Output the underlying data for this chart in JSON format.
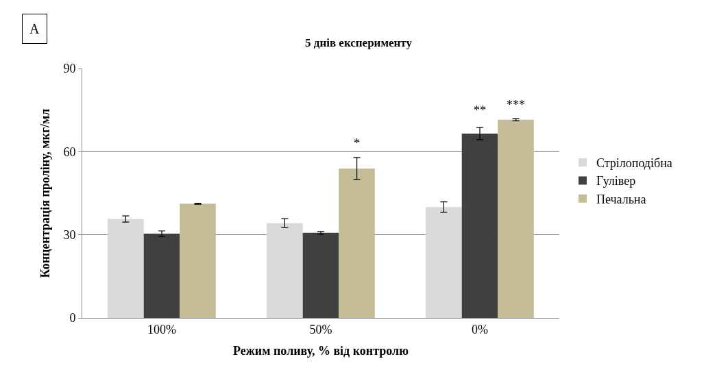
{
  "chart_data": {
    "type": "bar",
    "title": "5 днів експерименту",
    "xlabel": "Режим поливу, % від контролю",
    "ylabel": "Концентрація проліну, мкг/мл",
    "categories": [
      "100%",
      "50%",
      "0%"
    ],
    "series": [
      {
        "name": "Стрілоподібна",
        "color": "#d9d9d9",
        "values": [
          35.7,
          34.2,
          40.0
        ],
        "errors": [
          1.1,
          1.6,
          1.9
        ]
      },
      {
        "name": "Гулівер",
        "color": "#404040",
        "values": [
          30.4,
          30.7,
          66.5
        ],
        "errors": [
          1.0,
          0.5,
          2.2
        ]
      },
      {
        "name": "Печальна",
        "color": "#c4bd97",
        "values": [
          41.2,
          53.9,
          71.5
        ],
        "errors": [
          0.2,
          4.0,
          0.4
        ]
      }
    ],
    "ylim": [
      0,
      90
    ],
    "yticks": [
      0,
      30,
      60,
      90
    ],
    "grid": "y",
    "legend": "right",
    "annotations": [
      "A",
      "*",
      "**",
      "***"
    ]
  }
}
